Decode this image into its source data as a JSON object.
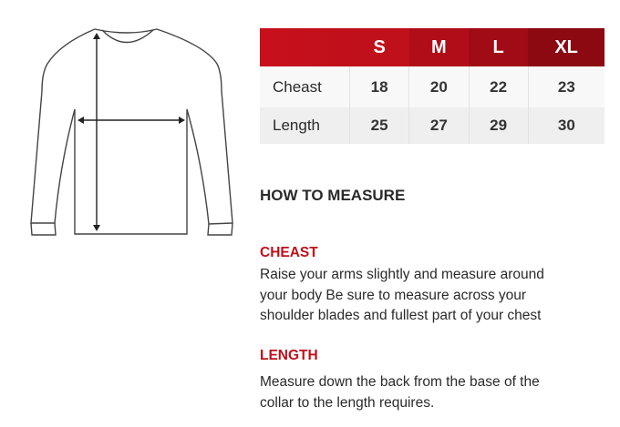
{
  "size_table": {
    "headers": [
      "",
      "S",
      "M",
      "L",
      "XL"
    ],
    "header_colors": [
      "#c8101c",
      "#c0101b",
      "#b00d18",
      "#a00b15",
      "#8c0912"
    ],
    "rows": [
      {
        "label": "Cheast",
        "values": [
          "18",
          "20",
          "22",
          "23"
        ]
      },
      {
        "label": "Length",
        "values": [
          "25",
          "27",
          "29",
          "30"
        ]
      }
    ]
  },
  "guide": {
    "title": "HOW TO MEASURE",
    "sections": [
      {
        "heading": "CHEAST",
        "lines": [
          "Raise your arms slightly and measure around",
          "your body Be sure to measure across your",
          "shoulder blades and fullest part of your chest"
        ]
      },
      {
        "heading": "LENGTH",
        "lines": [
          "Measure down the back from the base of the",
          "collar to the length requires."
        ]
      }
    ]
  }
}
